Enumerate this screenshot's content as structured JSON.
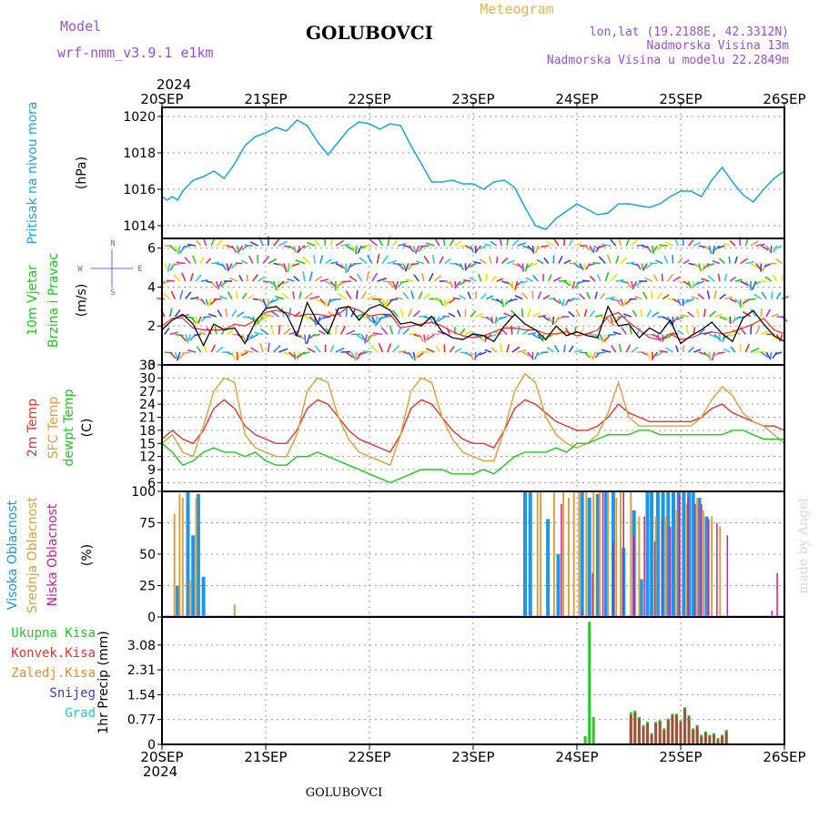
{
  "header": {
    "model_label": "Model",
    "model_name": "wrf-nmm_v3.9.1 e1km",
    "station": "GOLUBOVCI",
    "meteogram": "Meteogram",
    "lonlat": "lon,lat (19.2188E, 42.3312N)",
    "elevation": "Nadmorska Visina 13m",
    "model_elevation": "Nadmorska Visina u modelu 22.2849m",
    "year": "2024",
    "footer_station": "GOLUBOVCI",
    "credit": "made by Angel"
  },
  "colors": {
    "pressure": "#1aa3e6",
    "wind": "#000000",
    "t2m": "#e63232",
    "sfc": "#dca03c",
    "dewpt": "#1ec81e",
    "high_cloud": "#1e96e6",
    "mid_cloud": "#dca03c",
    "low_cloud": "#c81e96",
    "total_precip": "#28c828",
    "conv_precip": "#e63232",
    "frz_precip": "#f08c28",
    "snow": "#3c3cdc",
    "hail": "#28c8c8",
    "grid": "#9a9a9a"
  },
  "time_axis": [
    "20SEP",
    "21SEP",
    "22SEP",
    "23SEP",
    "24SEP",
    "25SEP",
    "26SEP"
  ],
  "chart_data": [
    {
      "id": "pressure",
      "type": "line",
      "ylabel": [
        "Pritisak na nivou mora",
        "(hPa)"
      ],
      "ylim": [
        1013.3,
        1020.5
      ],
      "yticks": [
        1014,
        1016,
        1018,
        1020
      ],
      "grid": true,
      "x": [
        0,
        0.05,
        0.1,
        0.15,
        0.2,
        0.3,
        0.4,
        0.5,
        0.6,
        0.7,
        0.8,
        0.9,
        1.0,
        1.1,
        1.2,
        1.3,
        1.4,
        1.5,
        1.6,
        1.7,
        1.8,
        1.9,
        2.0,
        2.1,
        2.2,
        2.3,
        2.4,
        2.5,
        2.6,
        2.7,
        2.8,
        2.9,
        3.0,
        3.1,
        3.2,
        3.3,
        3.4,
        3.5,
        3.6,
        3.7,
        3.8,
        3.9,
        4.0,
        4.1,
        4.2,
        4.3,
        4.4,
        4.5,
        4.6,
        4.7,
        4.8,
        4.9,
        5.0,
        5.1,
        5.2,
        5.3,
        5.4,
        5.5,
        5.6,
        5.7,
        5.8,
        5.9,
        6.0
      ],
      "series": [
        {
          "values": [
            1015.6,
            1015.4,
            1015.6,
            1015.4,
            1015.9,
            1016.5,
            1016.7,
            1017.0,
            1016.6,
            1017.4,
            1018.4,
            1018.9,
            1019.1,
            1019.4,
            1019.2,
            1019.8,
            1019.5,
            1018.6,
            1017.9,
            1018.6,
            1019.3,
            1019.7,
            1019.6,
            1019.3,
            1019.6,
            1019.5,
            1018.4,
            1017.4,
            1016.4,
            1016.4,
            1016.5,
            1016.3,
            1016.3,
            1016.0,
            1016.4,
            1016.5,
            1016.1,
            1015.0,
            1014.0,
            1013.8,
            1014.4,
            1014.8,
            1015.2,
            1014.9,
            1014.6,
            1014.7,
            1015.2,
            1015.2,
            1015.1,
            1015.0,
            1015.2,
            1015.6,
            1015.9,
            1015.9,
            1015.6,
            1016.5,
            1017.2,
            1016.4,
            1015.7,
            1015.3,
            1016.0,
            1016.6,
            1017.0
          ]
        }
      ]
    },
    {
      "id": "wind",
      "type": "line",
      "ylabel": [
        "10m Vjetar",
        "Brzina i Pravac",
        "(m/s)"
      ],
      "compass": [
        "N",
        "W",
        "E",
        "S"
      ],
      "ylim": [
        0,
        6.5
      ],
      "yticks": [
        0,
        2,
        4,
        6
      ],
      "grid": true,
      "x": [
        0,
        0.1,
        0.2,
        0.3,
        0.4,
        0.5,
        0.6,
        0.7,
        0.8,
        0.9,
        1.0,
        1.1,
        1.2,
        1.3,
        1.4,
        1.5,
        1.6,
        1.7,
        1.8,
        1.9,
        2.0,
        2.1,
        2.2,
        2.3,
        2.4,
        2.5,
        2.6,
        2.7,
        2.8,
        2.9,
        3.0,
        3.1,
        3.2,
        3.3,
        3.4,
        3.5,
        3.6,
        3.7,
        3.8,
        3.9,
        4.0,
        4.1,
        4.2,
        4.3,
        4.4,
        4.5,
        4.6,
        4.7,
        4.8,
        4.9,
        5.0,
        5.1,
        5.2,
        5.3,
        5.4,
        5.5,
        5.6,
        5.7,
        5.8,
        5.9,
        6.0
      ],
      "series": [
        {
          "name": "speed",
          "values": [
            1.8,
            2.3,
            2.6,
            2.1,
            1.0,
            2.1,
            1.8,
            1.9,
            1.1,
            2.2,
            2.9,
            3.0,
            2.6,
            1.5,
            3.2,
            2.2,
            1.6,
            2.9,
            3.0,
            2.3,
            2.9,
            3.1,
            2.8,
            2.1,
            2.2,
            2.0,
            2.5,
            1.7,
            1.4,
            1.3,
            1.6,
            1.5,
            1.2,
            2.0,
            2.6,
            2.1,
            1.8,
            1.3,
            2.0,
            1.5,
            1.7,
            1.5,
            1.4,
            3.0,
            2.0,
            2.1,
            1.4,
            1.9,
            1.6,
            2.3,
            1.1,
            1.5,
            1.8,
            2.2,
            1.6,
            1.2,
            2.4,
            2.8,
            2.1,
            1.5,
            1.2
          ]
        },
        {
          "name": "gust",
          "values": [
            2.0,
            2.4,
            2.4,
            1.9,
            1.8,
            1.8,
            1.8,
            2.1,
            2.0,
            2.3,
            2.7,
            2.8,
            2.7,
            2.5,
            2.6,
            2.6,
            2.5,
            2.6,
            3.0,
            2.8,
            2.5,
            2.6,
            2.6,
            1.9,
            2.0,
            2.1,
            2.2,
            2.0,
            1.7,
            1.5,
            1.4,
            1.5,
            1.7,
            1.9,
            1.9,
            1.8,
            1.8,
            1.6,
            1.6,
            1.7,
            1.5,
            1.6,
            1.8,
            2.5,
            2.7,
            2.2,
            1.8,
            1.4,
            1.3,
            1.6,
            1.3,
            1.4,
            1.6,
            1.7,
            1.6,
            1.7,
            1.9,
            2.1,
            2.4,
            1.8,
            1.6
          ]
        }
      ]
    },
    {
      "id": "temperature",
      "type": "line",
      "ylabel": [
        "2m Temp",
        "SFC Temp",
        "dewpt Temp",
        "(C)"
      ],
      "ylim": [
        4,
        33
      ],
      "yticks": [
        6,
        9,
        12,
        15,
        18,
        21,
        24,
        27,
        30,
        33
      ],
      "grid": true,
      "x": [
        0,
        0.1,
        0.2,
        0.3,
        0.4,
        0.5,
        0.6,
        0.7,
        0.8,
        0.9,
        1.0,
        1.1,
        1.2,
        1.3,
        1.4,
        1.5,
        1.6,
        1.7,
        1.8,
        1.9,
        2.0,
        2.1,
        2.2,
        2.3,
        2.4,
        2.5,
        2.6,
        2.7,
        2.8,
        2.9,
        3.0,
        3.1,
        3.2,
        3.3,
        3.4,
        3.5,
        3.6,
        3.7,
        3.8,
        3.9,
        4.0,
        4.1,
        4.2,
        4.3,
        4.4,
        4.5,
        4.6,
        4.7,
        4.8,
        4.9,
        5.0,
        5.1,
        5.2,
        5.3,
        5.4,
        5.5,
        5.6,
        5.7,
        5.8,
        5.9,
        6.0
      ],
      "series": [
        {
          "name": "2m Temp",
          "values": [
            16,
            18,
            16,
            15,
            18,
            23,
            25,
            23,
            19,
            17,
            16,
            15,
            15,
            18,
            23,
            25,
            24,
            21,
            18,
            16,
            15,
            14,
            13,
            17,
            23,
            25,
            24,
            21,
            18,
            16,
            15,
            15,
            14,
            18,
            23,
            25,
            24,
            22,
            20,
            19,
            18,
            18,
            19,
            21,
            24,
            22,
            21,
            20,
            20,
            20,
            20,
            20,
            21,
            23,
            24,
            22,
            21,
            20,
            19,
            19,
            18
          ]
        },
        {
          "name": "SFC Temp",
          "values": [
            15,
            17,
            13,
            12,
            19,
            27,
            30,
            29,
            17,
            14,
            13,
            12,
            12,
            17,
            27,
            30,
            29,
            21,
            16,
            13,
            12,
            11,
            10,
            17,
            27,
            30,
            29,
            21,
            16,
            13,
            12,
            11,
            11,
            18,
            27,
            31,
            29,
            21,
            17,
            15,
            14,
            15,
            17,
            22,
            29,
            21,
            19,
            19,
            19,
            19,
            19,
            19,
            21,
            25,
            28,
            26,
            22,
            20,
            19,
            17,
            15
          ]
        },
        {
          "name": "dewpt Temp",
          "values": [
            15,
            13,
            10,
            11,
            13,
            14,
            13,
            13,
            12,
            13,
            11,
            10,
            10,
            12,
            12,
            13,
            12,
            11,
            10,
            9,
            8,
            7,
            6,
            7,
            8,
            9,
            9,
            9,
            8,
            8,
            8,
            9,
            8,
            10,
            12,
            13,
            13,
            13,
            14,
            13,
            15,
            15,
            16,
            17,
            17,
            17,
            18,
            18,
            17,
            17,
            17,
            17,
            17,
            17,
            17,
            18,
            18,
            17,
            16,
            16,
            16
          ]
        }
      ]
    },
    {
      "id": "cloud",
      "type": "bar",
      "ylabel": [
        "Visoka Oblacnost",
        "Srednja Oblacnost",
        "Niska Oblacnost",
        "(%)"
      ],
      "ylim": [
        0,
        100
      ],
      "yticks": [
        0,
        25,
        50,
        75,
        100
      ],
      "grid": true,
      "series": [
        {
          "name": "Visoka Oblacnost",
          "x": [
            0.15,
            0.25,
            0.3,
            0.35,
            0.4,
            3.5,
            3.55,
            3.72,
            3.82,
            4.05,
            4.12,
            4.2,
            4.28,
            4.35,
            4.45,
            4.55,
            4.62,
            4.68,
            4.72,
            4.78,
            4.83,
            4.88,
            4.93,
            4.98,
            5.03,
            5.08,
            5.12,
            5.18,
            5.25
          ],
          "values": [
            25,
            100,
            65,
            98,
            32,
            100,
            100,
            78,
            50,
            100,
            95,
            98,
            100,
            100,
            55,
            85,
            30,
            100,
            100,
            100,
            100,
            100,
            100,
            100,
            100,
            100,
            100,
            95,
            80
          ]
        },
        {
          "name": "Srednja Oblacnost",
          "x": [
            0.12,
            0.17,
            0.2,
            0.27,
            0.33,
            0.7,
            3.62,
            3.65,
            3.78,
            3.87,
            3.92,
            3.97,
            4.02,
            4.09,
            4.16,
            4.22,
            4.3,
            4.38,
            4.42,
            4.52,
            4.6,
            4.76,
            4.86,
            4.96,
            5.06,
            5.16,
            5.22,
            5.3,
            5.38
          ],
          "values": [
            82,
            98,
            95,
            30,
            95,
            10,
            100,
            100,
            100,
            100,
            95,
            100,
            100,
            100,
            100,
            100,
            100,
            95,
            100,
            100,
            80,
            80,
            80,
            85,
            90,
            95,
            85,
            80,
            72
          ]
        },
        {
          "name": "Niska Oblacnost",
          "x": [
            3.85,
            4.05,
            4.15,
            4.25,
            4.35,
            4.45,
            4.55,
            4.65,
            4.75,
            4.82,
            4.9,
            4.99,
            5.07,
            5.14,
            5.2,
            5.27,
            5.35,
            5.45,
            5.88,
            5.93
          ],
          "values": [
            90,
            5,
            35,
            100,
            60,
            100,
            65,
            80,
            60,
            78,
            72,
            98,
            95,
            90,
            90,
            78,
            75,
            65,
            5,
            35
          ]
        }
      ]
    },
    {
      "id": "precip",
      "type": "bar",
      "ylabel": [
        "1hr Precip (mm)"
      ],
      "ylim": [
        0,
        3.95
      ],
      "yticks": [
        0,
        0.77,
        1.54,
        2.31,
        3.08
      ],
      "grid": true,
      "legend": [
        "Ukupna Kisa",
        "Konvek.Kisa",
        "Zaledj.Kisa",
        "Snijeg",
        "Grad"
      ],
      "series": [
        {
          "name": "Ukupna Kisa",
          "x": [
            4.08,
            4.12,
            4.16,
            4.52,
            4.56,
            4.6,
            4.64,
            4.68,
            4.72,
            4.76,
            4.8,
            4.84,
            4.88,
            4.92,
            4.96,
            5.0,
            5.04,
            5.08,
            5.12,
            5.16,
            5.2,
            5.24,
            5.28,
            5.32,
            5.36,
            5.4,
            5.44
          ],
          "values": [
            0.25,
            3.8,
            0.85,
            1.0,
            1.05,
            0.85,
            0.6,
            0.7,
            0.35,
            0.7,
            0.75,
            0.5,
            0.8,
            0.95,
            0.95,
            0.75,
            1.15,
            0.9,
            0.5,
            0.6,
            0.3,
            0.4,
            0.3,
            0.35,
            0.2,
            0.3,
            0.45
          ]
        },
        {
          "name": "Konvek.Kisa",
          "x": [
            4.52,
            4.56,
            4.6,
            4.64,
            4.68,
            4.72,
            4.76,
            4.8,
            4.84,
            4.88,
            4.92,
            4.96,
            5.0,
            5.04,
            5.08,
            5.12,
            5.16,
            5.2,
            5.24,
            5.28,
            5.32,
            5.36,
            5.4,
            5.44
          ],
          "values": [
            0.9,
            1.0,
            0.8,
            0.55,
            0.65,
            0.3,
            0.65,
            0.7,
            0.45,
            0.75,
            0.9,
            0.9,
            0.7,
            1.1,
            0.85,
            0.45,
            0.55,
            0.25,
            0.35,
            0.25,
            0.3,
            0.15,
            0.25,
            0.4
          ]
        }
      ]
    }
  ]
}
